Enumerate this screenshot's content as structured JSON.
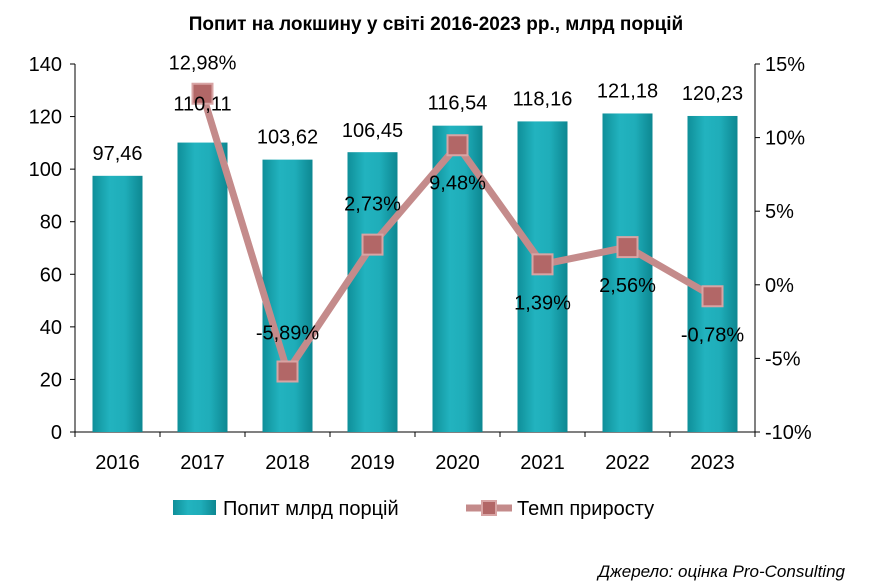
{
  "chart_data": {
    "type": "bar",
    "title": "Попит на локшину у світі 2016-2023 рр., млрд порцій",
    "categories": [
      "2016",
      "2017",
      "2018",
      "2019",
      "2020",
      "2021",
      "2022",
      "2023"
    ],
    "series": [
      {
        "name": "Попит млрд порцій",
        "type": "bar",
        "axis": "left",
        "values": [
          97.46,
          110.11,
          103.62,
          106.45,
          116.54,
          118.16,
          121.18,
          120.23
        ],
        "labels": [
          "97,46",
          "110,11",
          "103,62",
          "106,45",
          "116,54",
          "118,16",
          "121,18",
          "120,23"
        ],
        "color": "#1aa4b0"
      },
      {
        "name": "Темп приросту",
        "type": "line",
        "axis": "right",
        "values": [
          null,
          12.98,
          -5.89,
          2.73,
          9.48,
          1.39,
          2.56,
          -0.78
        ],
        "labels": [
          "",
          "12,98%",
          "-5,89%",
          "2,73%",
          "9,48%",
          "1,39%",
          "2,56%",
          "-0,78%"
        ],
        "color": "#c48b8b"
      }
    ],
    "y_left": {
      "ylim": [
        0,
        140
      ],
      "ticks": [
        "0",
        "20",
        "40",
        "60",
        "80",
        "100",
        "120",
        "140"
      ]
    },
    "y_right": {
      "ylim": [
        -10,
        15
      ],
      "ticks": [
        "-10%",
        "-5%",
        "0%",
        "5%",
        "10%",
        "15%"
      ]
    },
    "grid": false,
    "legend_position": "bottom"
  },
  "source": "Джерело: оцінка Pro-Consulting"
}
